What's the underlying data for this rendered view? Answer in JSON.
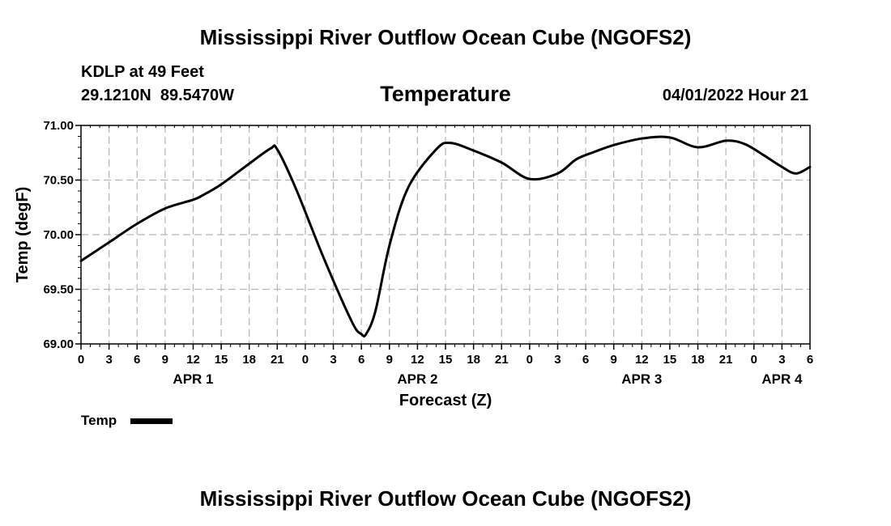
{
  "chart_data": {
    "type": "line",
    "title": "Mississippi River Outflow Ocean Cube (NGOFS2)",
    "footer_title": "Mississippi River Outflow Ocean Cube (NGOFS2)",
    "subtitle": "Temperature",
    "station_line": "KDLP at 49 Feet",
    "coords_line": "29.1210N  89.5470W",
    "timestamp": "04/01/2022 Hour 21",
    "xlabel": "Forecast (Z)",
    "ylabel": "Temp (degF)",
    "xlim": [
      0,
      78
    ],
    "ylim": [
      69.0,
      71.0
    ],
    "y_ticks": [
      "69.00",
      "69.50",
      "70.00",
      "70.50",
      "71.00"
    ],
    "x_tick_hours": [
      0,
      3,
      6,
      9,
      12,
      15,
      18,
      21,
      24,
      27,
      30,
      33,
      36,
      39,
      42,
      45,
      48,
      51,
      54,
      57,
      60,
      63,
      66,
      69,
      72,
      75,
      78
    ],
    "x_tick_labels": [
      "0",
      "3",
      "6",
      "9",
      "12",
      "15",
      "18",
      "21",
      "0",
      "3",
      "6",
      "9",
      "12",
      "15",
      "18",
      "21",
      "0",
      "3",
      "6",
      "9",
      "12",
      "15",
      "18",
      "21",
      "0",
      "3",
      "6"
    ],
    "day_labels": [
      {
        "label": "APR 1",
        "hour": 12
      },
      {
        "label": "APR 2",
        "hour": 36
      },
      {
        "label": "APR 3",
        "hour": 60
      },
      {
        "label": "APR 4",
        "hour": 75
      }
    ],
    "grid": true,
    "legend": {
      "label": "Temp",
      "placement": "bottom-left"
    },
    "series": [
      {
        "name": "Temp",
        "color": "#000000",
        "x": [
          0,
          3,
          6,
          9,
          12,
          13,
          15,
          18,
          20.3,
          21,
          23,
          26,
          29,
          30,
          30.5,
          31.5,
          33,
          35,
          38,
          39.5,
          42,
          45,
          48,
          51,
          53,
          55,
          57,
          60,
          63,
          66,
          69,
          71,
          73,
          75,
          76.5,
          78
        ],
        "values": [
          69.76,
          69.93,
          70.1,
          70.24,
          70.32,
          70.36,
          70.46,
          70.65,
          70.79,
          70.78,
          70.42,
          69.78,
          69.2,
          69.09,
          69.09,
          69.3,
          69.9,
          70.43,
          70.78,
          70.84,
          70.77,
          70.66,
          70.51,
          70.56,
          70.69,
          70.76,
          70.82,
          70.88,
          70.89,
          70.8,
          70.86,
          70.83,
          70.73,
          70.62,
          70.56,
          70.62
        ]
      }
    ]
  },
  "colors": {
    "line": "#000000",
    "grid": "#b4b4b4",
    "background": "#ffffff"
  }
}
